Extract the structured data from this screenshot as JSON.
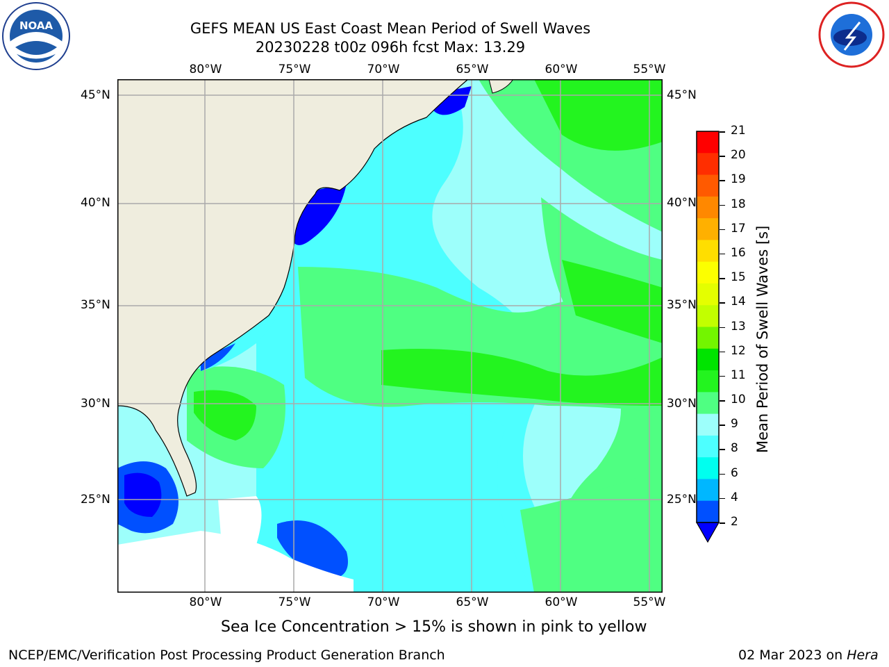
{
  "header": {
    "title_line1": "GEFS MEAN US East Coast Mean Period of Swell Waves",
    "title_line2": "20230228 t00z 096h fcst   Max: 13.29",
    "left_logo": "noara-logo",
    "left_logo_text": "NOAA",
    "right_logo": "nws-logo"
  },
  "map": {
    "longitude_labels": [
      "80°W",
      "75°W",
      "70°W",
      "65°W",
      "60°W",
      "55°W"
    ],
    "latitude_labels": [
      "45°N",
      "40°N",
      "35°N",
      "30°N",
      "25°N"
    ],
    "land_color": "#efedde",
    "grid_color": "#aaaaaa"
  },
  "colorbar": {
    "title": "Mean Period of Swell Waves [s]",
    "ticks": [
      "21",
      "20",
      "19",
      "18",
      "17",
      "16",
      "15",
      "14",
      "13",
      "12",
      "11",
      "10",
      "9",
      "8",
      "6",
      "4",
      "2"
    ],
    "colors_top_to_bottom": [
      "#ff0000",
      "#ff2e00",
      "#ff5a00",
      "#ff8800",
      "#ffb000",
      "#ffde00",
      "#fcff00",
      "#e4ff00",
      "#c2ff00",
      "#73f500",
      "#00e400",
      "#23f41f",
      "#4fff82",
      "#9dfffb",
      "#4dffff",
      "#00ffef",
      "#00b7ff",
      "#0050ff"
    ],
    "underflow_color": "#0000ff"
  },
  "notes": {
    "sea_ice": "Sea Ice Concentration > 15% is shown in pink to yellow"
  },
  "footer": {
    "left": "NCEP/EMC/Verification Post Processing Product Generation Branch",
    "right_date": "02 Mar 2023 on ",
    "right_host": "Hera"
  }
}
